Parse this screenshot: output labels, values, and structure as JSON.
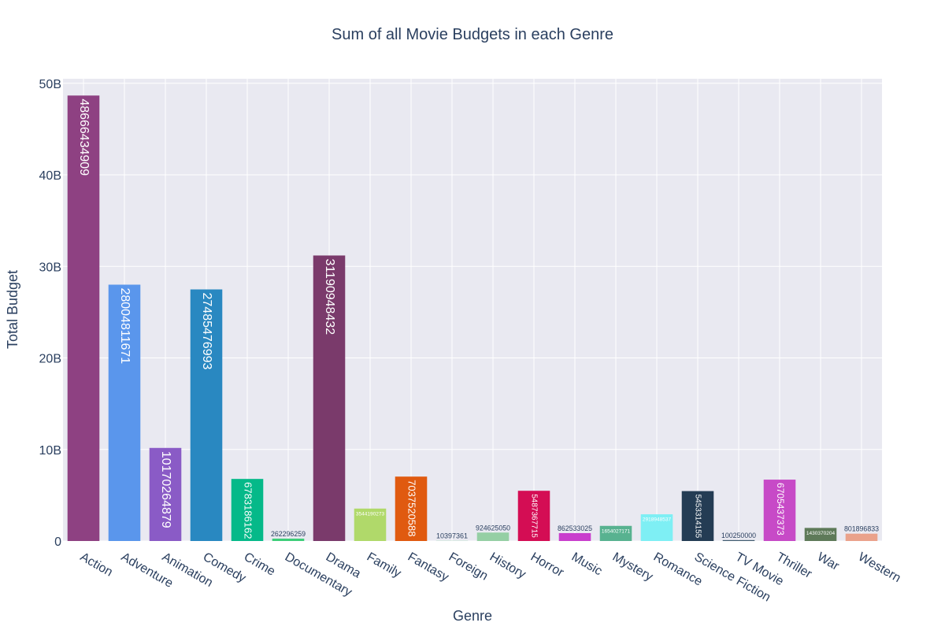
{
  "chart_data": {
    "type": "bar",
    "title": "Sum of all Movie Budgets in each Genre",
    "xlabel": "Genre",
    "ylabel": "Total Budget",
    "ylim": [
      0,
      50500000000
    ],
    "yticks": [
      0,
      10000000000,
      20000000000,
      30000000000,
      40000000000,
      50000000000
    ],
    "ytick_labels": [
      "0",
      "10B",
      "20B",
      "30B",
      "40B",
      "50B"
    ],
    "grid": true,
    "background_color": "#e9e9f1",
    "categories": [
      "Action",
      "Adventure",
      "Animation",
      "Comedy",
      "Crime",
      "Documentary",
      "Drama",
      "Family",
      "Fantasy",
      "Foreign",
      "History",
      "Horror",
      "Music",
      "Mystery",
      "Romance",
      "Science Fiction",
      "TV Movie",
      "Thriller",
      "War",
      "Western"
    ],
    "values": [
      48666434909,
      28004811671,
      10170264879,
      27485476993,
      6783186162,
      262296259,
      31190948432,
      3544190273,
      7037520588,
      10397361,
      924625050,
      5487367715,
      862533025,
      1654027171,
      2918948537,
      5453314155,
      100250000,
      6705437373,
      1430370204,
      801896833
    ],
    "data_labels": [
      "48666434909",
      "28004811671",
      "10170264879",
      "27485476993",
      "6783186162",
      "262296259",
      "31190948432",
      "3544190273",
      "7037520588",
      "10397361",
      "924625050",
      "5487367715",
      "862533025",
      "1654027171",
      "2918948537",
      "5453314155",
      "100250000",
      "6705437373",
      "1430370204",
      "801896833"
    ],
    "colors": [
      "#8e4182",
      "#5a96ec",
      "#8a5bc6",
      "#2988c1",
      "#05b989",
      "#3dce79",
      "#7a3a6b",
      "#b0d96a",
      "#e05a10",
      "#cbe9d6",
      "#95cfa4",
      "#d40d54",
      "#c93ecd",
      "#58b290",
      "#7eeff4",
      "#243c54",
      "#3f5b6f",
      "#c74ac7",
      "#5e7a59",
      "#eaa28b"
    ]
  }
}
